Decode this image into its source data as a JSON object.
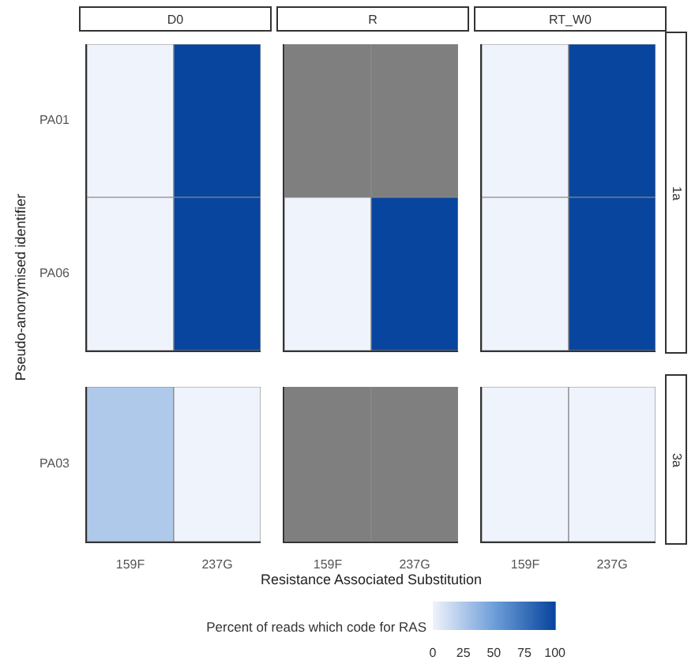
{
  "chart_data": {
    "type": "heatmap",
    "xlabel": "Resistance Associated Substitution",
    "ylabel": "Pseudo-anonymised identifier",
    "clabel": "Percent of reads which code for RAS",
    "categories": [
      "159F",
      "237G",
      "159F",
      "237G",
      "159F",
      "237G"
    ],
    "y_categories": [
      "PA01",
      "PA06",
      "PA03"
    ],
    "cells": [
      [
        0,
        100,
        null,
        null,
        0,
        100
      ],
      [
        0,
        100,
        0,
        100,
        0,
        100
      ],
      [
        25,
        0,
        null,
        null,
        0,
        0
      ]
    ],
    "clim": [
      0,
      100
    ],
    "cticks": [
      0,
      25,
      50,
      75,
      100
    ],
    "annotations": [
      "D0",
      "R",
      "RT_W0",
      "1a",
      "3a"
    ]
  }
}
